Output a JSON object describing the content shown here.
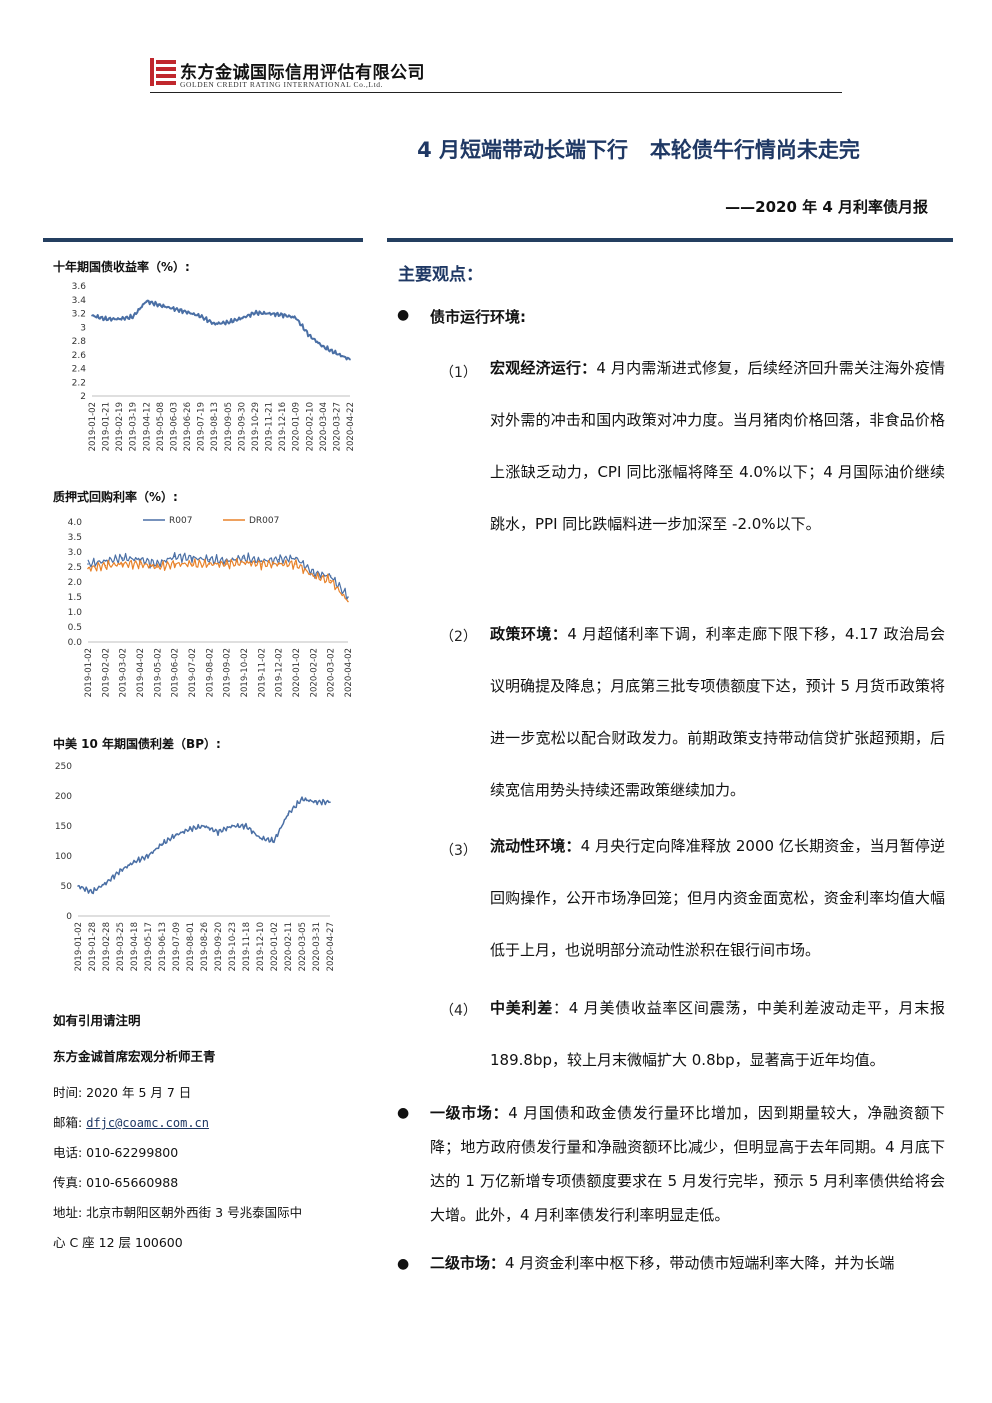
{
  "header": {
    "company_cn": "东方金诚国际信用评估有限公司",
    "company_en": "GOLDEN CREDIT RATING INTERNATIONAL Co.,Ltd."
  },
  "title": "4 月短端带动长端下行   本轮债牛行情尚未走完",
  "subtitle": "——2020 年 4 月利率债月报",
  "sidebar": {
    "chart1_title": "十年期国债收益率（%）:",
    "chart2_title": "质押式回购利率（%）:",
    "chart3_title": "中美 10 年期国债利差（BP）:",
    "cite_note": "如有引用请注明",
    "analyst": "东方金诚首席宏观分析师王青",
    "date_line": "时间: 2020 年 5 月 7 日",
    "email_label": "邮箱: ",
    "email": "dfjc@coamc.com.cn",
    "phone_line": "电话: 010-62299800",
    "fax_line": "传真: 010-65660988",
    "address_line1": "地址: 北京市朝阳区朝外西街 3 号兆泰国际中",
    "address_line2": "心 C 座 12 层 100600"
  },
  "main": {
    "heading": "主要观点：",
    "bullet_symbol": "●",
    "section1": "债市运行环境:",
    "items": [
      {
        "num": "（1）",
        "bold": "宏观经济运行：",
        "text": "4 月内需渐进式修复，后续经济回升需关注海外疫情对外需的冲击和国内政策对冲力度。当月猪肉价格回落，非食品价格上涨缺乏动力，CPI 同比涨幅将降至 4.0%以下；4 月国际油价继续跳水，PPI 同比跌幅料进一步加深至 -2.0%以下。"
      },
      {
        "num": "（2）",
        "bold": "政策环境：",
        "text": "4 月超储利率下调，利率走廊下限下移，4.17 政治局会议明确提及降息；月底第三批专项债额度下达，预计 5 月货币政策将进一步宽松以配合财政发力。前期政策支持带动信贷扩张超预期，后续宽信用势头持续还需政策继续加力。"
      },
      {
        "num": "（3）",
        "bold": "流动性环境：",
        "text": "4 月央行定向降准释放 2000 亿长期资金，当月暂停逆回购操作，公开市场净回笼；但月内资金面宽松，资金利率均值大幅低于上月，也说明部分流动性淤积在银行间市场。"
      },
      {
        "num": "（4）",
        "bold": "中美利差",
        "text": "：4 月美债收益率区间震荡，中美利差波动走平，月末报 189.8bp，较上月末微幅扩大 0.8bp，显著高于近年均值。"
      }
    ],
    "primary": {
      "bold": "一级市场：",
      "text": "4 月国债和政金债发行量环比增加，因到期量较大，净融资额下降；地方政府债发行量和净融资额环比减少，但明显高于去年同期。4 月底下达的 1 万亿新增专项债额度要求在 5 月发行完毕，预示 5 月利率债供给将会大增。此外，4 月利率债发行利率明显走低。"
    },
    "secondary": {
      "bold": "二级市场：",
      "text": "4 月资金利率中枢下移，带动债市短端利率大降，并为长端"
    }
  },
  "chart_data": [
    {
      "type": "line",
      "title": "十年期国债收益率（%）:",
      "x": [
        "2019-01-02",
        "2019-01-21",
        "2019-02-19",
        "2019-03-19",
        "2019-04-12",
        "2019-05-08",
        "2019-06-03",
        "2019-06-26",
        "2019-07-19",
        "2019-08-13",
        "2019-09-05",
        "2019-09-30",
        "2019-10-29",
        "2019-11-21",
        "2019-12-16",
        "2020-01-09",
        "2020-02-10",
        "2020-03-04",
        "2020-03-27",
        "2020-04-22"
      ],
      "series": [
        {
          "name": "",
          "values": [
            3.17,
            3.12,
            3.12,
            3.15,
            3.38,
            3.32,
            3.27,
            3.22,
            3.16,
            3.05,
            3.07,
            3.13,
            3.21,
            3.2,
            3.18,
            3.14,
            2.88,
            2.72,
            2.62,
            2.53
          ]
        }
      ],
      "ylim": [
        2,
        3.6
      ],
      "yticks": [
        "3.6",
        "3.4",
        "3.2",
        "3",
        "2.8",
        "2.6",
        "2.4",
        "2.2",
        "2"
      ],
      "color": "#4a6fa5"
    },
    {
      "type": "line",
      "title": "质押式回购利率（%）:",
      "x": [
        "2019-01-02",
        "2019-02-02",
        "2019-03-02",
        "2019-04-02",
        "2019-05-02",
        "2019-06-02",
        "2019-07-02",
        "2019-08-02",
        "2019-09-02",
        "2019-10-02",
        "2019-11-02",
        "2019-12-02",
        "2020-01-02",
        "2020-02-02",
        "2020-03-02",
        "2020-04-02"
      ],
      "series": [
        {
          "name": "R007",
          "values": [
            2.6,
            2.7,
            2.8,
            2.75,
            2.6,
            2.85,
            2.8,
            2.75,
            2.7,
            2.8,
            2.7,
            2.75,
            2.8,
            2.3,
            2.2,
            1.5
          ],
          "color": "#4a6fa5"
        },
        {
          "name": "DR007",
          "values": [
            2.45,
            2.55,
            2.6,
            2.6,
            2.5,
            2.6,
            2.6,
            2.6,
            2.6,
            2.65,
            2.6,
            2.6,
            2.6,
            2.2,
            2.05,
            1.35
          ],
          "color": "#e8822a"
        }
      ],
      "ylim": [
        0,
        4.0
      ],
      "yticks": [
        "4.0",
        "3.5",
        "3.0",
        "2.5",
        "2.0",
        "1.5",
        "1.0",
        "0.5",
        "0.0"
      ]
    },
    {
      "type": "line",
      "title": "中美 10 年期国债利差（BP）:",
      "x": [
        "2019-01-02",
        "2019-01-28",
        "2019-02-28",
        "2019-03-25",
        "2019-04-18",
        "2019-05-17",
        "2019-06-13",
        "2019-07-09",
        "2019-08-01",
        "2019-08-26",
        "2019-09-20",
        "2019-10-23",
        "2019-11-18",
        "2019-12-10",
        "2020-01-02",
        "2020-02-11",
        "2020-03-05",
        "2020-03-31",
        "2020-04-27"
      ],
      "series": [
        {
          "name": "",
          "values": [
            50,
            40,
            55,
            75,
            90,
            100,
            120,
            135,
            145,
            150,
            140,
            150,
            150,
            130,
            125,
            170,
            195,
            190,
            189.8
          ]
        }
      ],
      "ylim": [
        0,
        250
      ],
      "yticks": [
        "250",
        "200",
        "150",
        "100",
        "50",
        "0"
      ],
      "color": "#4a6fa5"
    }
  ]
}
